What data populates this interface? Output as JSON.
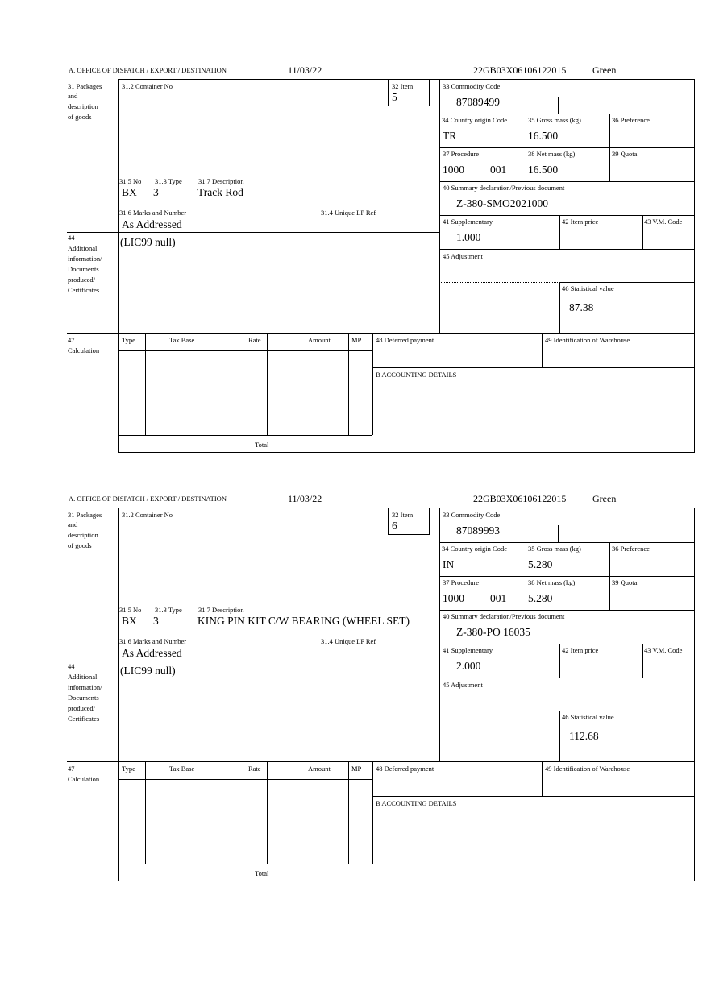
{
  "labels": {
    "office": "A. OFFICE OF DISPATCH / EXPORT / DESTINATION",
    "box31": [
      "31 Packages",
      "and",
      "description",
      "of goods"
    ],
    "container_no": "31.2 Container No",
    "item": "32 Item",
    "no": "31.5 No",
    "type": "31.3 Type",
    "description": "31.7 Description",
    "marks": "31.6 Marks and Number",
    "unique_lp": "31.4 Unique LP Ref",
    "box44": [
      "44",
      "Additional",
      "information/",
      "Documents",
      "produced/",
      "Certificates"
    ],
    "commodity": "33 Commodity Code",
    "country": "34 Country origin Code",
    "gross": "35 Gross mass (kg)",
    "preference": "36 Preference",
    "procedure": "37 Procedure",
    "net": "38 Net mass (kg)",
    "quota": "39 Quota",
    "summary": "40 Summary declaration/Previous document",
    "supplementary": "41 Supplementary",
    "item_price": "42 Item price",
    "vm_code": "43 V.M. Code",
    "adjustment": "45 Adjustment",
    "statistical": "46 Statistical value",
    "box47": [
      "47",
      "Calculation"
    ],
    "calc_cols": [
      "Type",
      "Tax Base",
      "Rate",
      "Amount",
      "MP"
    ],
    "total": "Total",
    "deferred": "48 Deferred payment",
    "warehouse": "49 Identification of Warehouse",
    "accounting": "B ACCOUNTING DETAILS"
  },
  "forms": [
    {
      "date": "11/03/22",
      "mrn": "22GB03X06106122015",
      "route": "Green",
      "item": "5",
      "no": "BX",
      "type": "3",
      "description": "Track Rod",
      "marks": "As Addressed",
      "additional": "(LIC99 null)",
      "commodity": "87089499",
      "country": "TR",
      "gross": "16.500",
      "procedure": "1000",
      "procedure_add": "001",
      "net": "16.500",
      "summary": "Z-380-SMO2021000",
      "supplementary": "1.000",
      "statistical": "87.38"
    },
    {
      "date": "11/03/22",
      "mrn": "22GB03X06106122015",
      "route": "Green",
      "item": "6",
      "no": "BX",
      "type": "3",
      "description": "KING PIN KIT C/W BEARING (WHEEL SET)",
      "marks": "As Addressed",
      "additional": "(LIC99 null)",
      "commodity": "87089993",
      "country": "IN",
      "gross": "5.280",
      "procedure": "1000",
      "procedure_add": "001",
      "net": "5.280",
      "summary": "Z-380-PO 16035",
      "supplementary": "2.000",
      "statistical": "112.68"
    }
  ]
}
